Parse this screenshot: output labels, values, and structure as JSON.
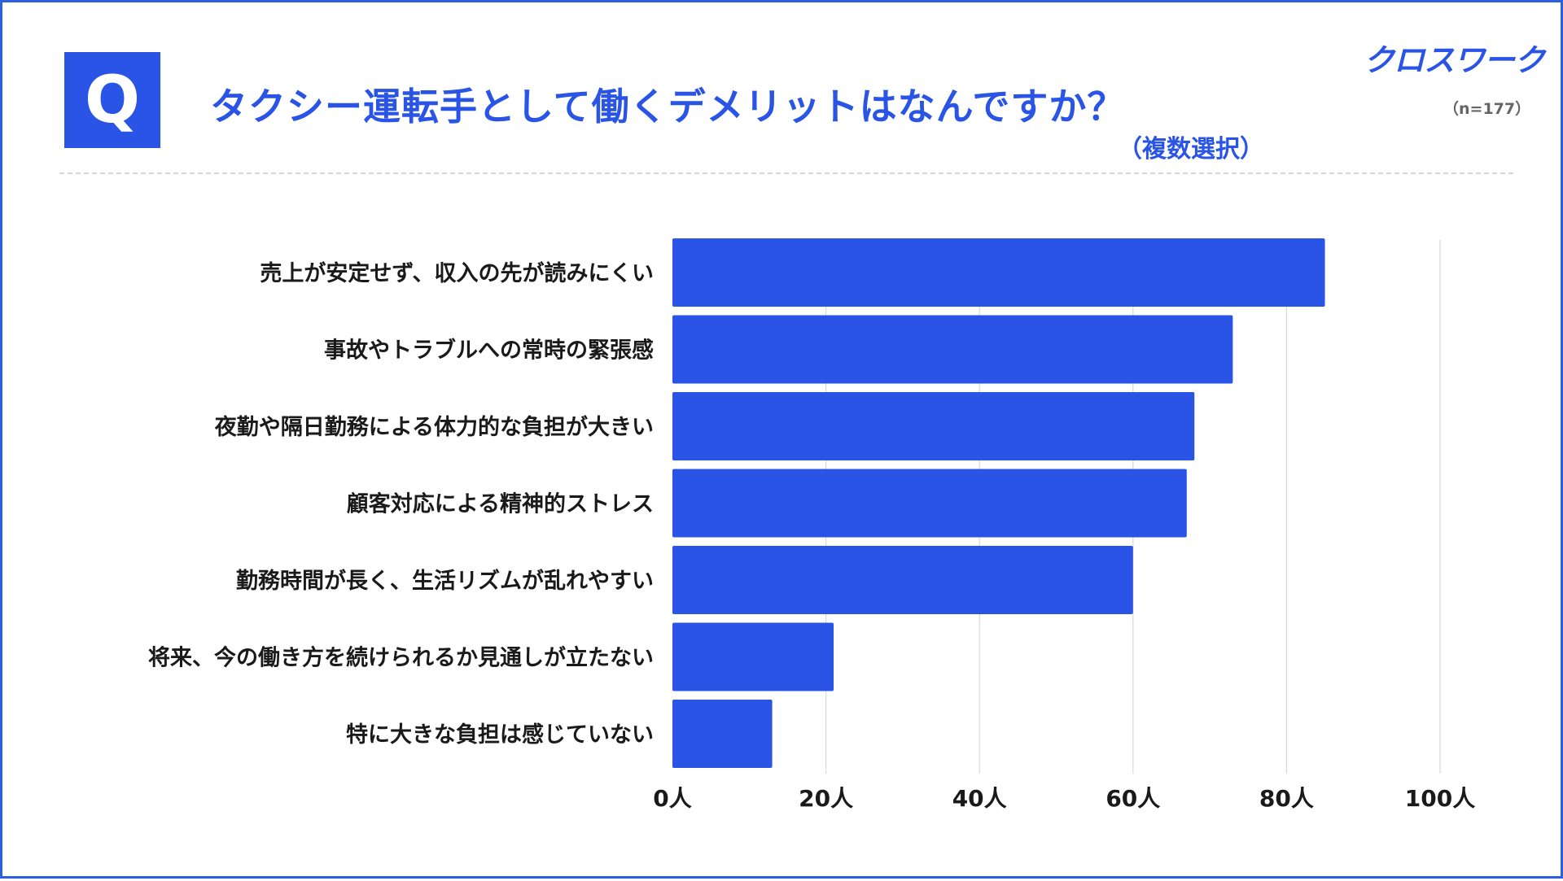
{
  "header": {
    "badge": "Q",
    "title": "タクシー運転手として働くデメリットはなんですか？",
    "subtitle": "（複数選択）",
    "logo": "クロスワーク",
    "sample_size": "（n=177）"
  },
  "colors": {
    "accent": "#2954e6",
    "bar": "#2954e6",
    "grid": "#d9d9d9",
    "text": "#1a1a1a"
  },
  "chart_data": {
    "type": "bar",
    "orientation": "horizontal",
    "title": "タクシー運転手として働くデメリットはなんですか？",
    "categories": [
      "売上が安定せず、収入の先が読みにくい",
      "事故やトラブルへの常時の緊張感",
      "夜勤や隔日勤務による体力的な負担が大きい",
      "顧客対応による精神的ストレス",
      "勤務時間が長く、生活リズムが乱れやすい",
      "将来、今の働き方を続けられるか見通しが立たない",
      "特に大きな負担は感じていない"
    ],
    "values": [
      85,
      73,
      68,
      67,
      60,
      21,
      13
    ],
    "xlim": [
      0,
      100
    ],
    "xticks": [
      0,
      20,
      40,
      60,
      80,
      100
    ],
    "tick_suffix": "人",
    "tick_labels": [
      "0人",
      "20人",
      "40人",
      "60人",
      "80人",
      "100人"
    ],
    "grid": "vertical",
    "legend": "none"
  }
}
